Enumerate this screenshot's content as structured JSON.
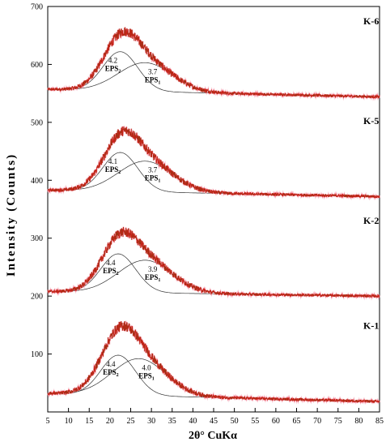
{
  "chart_data": {
    "type": "line",
    "xlabel": "2θ° CuKα",
    "ylabel": "Intensity (Counts)",
    "xlim": [
      5,
      85
    ],
    "ylim": [
      0,
      700
    ],
    "x_ticks": [
      5,
      10,
      15,
      20,
      25,
      30,
      35,
      40,
      45,
      50,
      55,
      60,
      65,
      70,
      75,
      80,
      85
    ],
    "y_ticks": [
      100,
      200,
      300,
      400,
      500,
      600,
      700
    ],
    "grid": false,
    "colors": {
      "data": "#e8141c",
      "fit": "#333333",
      "axis": "#000000"
    },
    "series": [
      {
        "name": "K-6",
        "baseline_start": 557,
        "baseline_end": 544,
        "peak_x": 23.5,
        "peak_y": 652,
        "components": [
          {
            "name": "EPS2",
            "d_spacing": "4.2",
            "center": 22.5,
            "height": 622
          },
          {
            "name": "EPS1",
            "d_spacing": "3.7",
            "center": 28.5,
            "height": 603
          }
        ]
      },
      {
        "name": "K-5",
        "baseline_start": 383,
        "baseline_end": 372,
        "peak_x": 23.5,
        "peak_y": 478,
        "components": [
          {
            "name": "EPS2",
            "d_spacing": "4.1",
            "center": 22.5,
            "height": 448
          },
          {
            "name": "EPS1",
            "d_spacing": "3.7",
            "center": 28.5,
            "height": 433
          }
        ]
      },
      {
        "name": "K-2",
        "baseline_start": 208,
        "baseline_end": 200,
        "peak_x": 23.0,
        "peak_y": 313,
        "components": [
          {
            "name": "EPS2",
            "d_spacing": "4.4",
            "center": 22.0,
            "height": 273
          },
          {
            "name": "EPS1",
            "d_spacing": "3.9",
            "center": 28.5,
            "height": 262
          }
        ]
      },
      {
        "name": "K-1",
        "baseline_start": 32,
        "baseline_end": 18,
        "peak_x": 23.0,
        "peak_y": 135,
        "components": [
          {
            "name": "EPS2",
            "d_spacing": "4.4",
            "center": 22.0,
            "height": 98
          },
          {
            "name": "EPS1",
            "d_spacing": "4.0",
            "center": 27.0,
            "height": 92
          }
        ]
      }
    ]
  }
}
